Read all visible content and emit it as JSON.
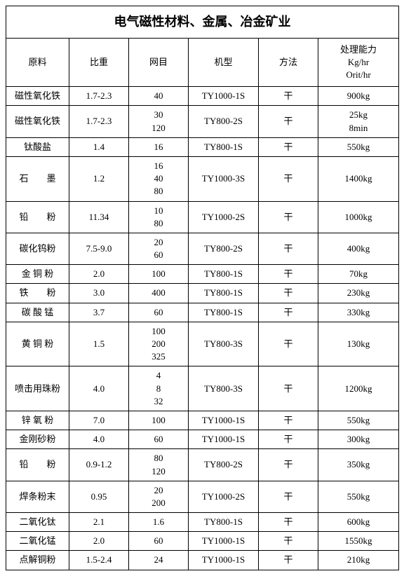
{
  "title": "电气磁性材料、金属、冶金矿业",
  "headers": {
    "col1": "原料",
    "col2": "比重",
    "col3": "网目",
    "col4": "机型",
    "col5": "方法",
    "col6": "处理能力\nKg/hr\nOrit/hr"
  },
  "rows": [
    {
      "c1": "磁性氧化铁",
      "c2": "1.7-2.3",
      "c3": "40",
      "c4": "TY1000-1S",
      "c5": "干",
      "c6": "900kg"
    },
    {
      "c1": "磁性氧化铁",
      "c2": "1.7-2.3",
      "c3": "30\n120",
      "c4": "TY800-2S",
      "c5": "干",
      "c6": "25kg\n8min"
    },
    {
      "c1": "钛酸盐",
      "c2": "1.4",
      "c3": "16",
      "c4": "TY800-1S",
      "c5": "干",
      "c6": "550kg"
    },
    {
      "c1": "石　　墨",
      "c2": "1.2",
      "c3": "16\n40\n80",
      "c4": "TY1000-3S",
      "c5": "干",
      "c6": "1400kg"
    },
    {
      "c1": "铅　　粉",
      "c2": "11.34",
      "c3": "10\n80",
      "c4": "TY1000-2S",
      "c5": "干",
      "c6": "1000kg"
    },
    {
      "c1": "碳化钨粉",
      "c2": "7.5-9.0",
      "c3": "20\n60",
      "c4": "TY800-2S",
      "c5": "干",
      "c6": "400kg"
    },
    {
      "c1": "金 铜 粉",
      "c2": "2.0",
      "c3": "100",
      "c4": "TY800-1S",
      "c5": "干",
      "c6": "70kg"
    },
    {
      "c1": "铁　　粉",
      "c2": "3.0",
      "c3": "400",
      "c4": "TY800-1S",
      "c5": "干",
      "c6": "230kg"
    },
    {
      "c1": "碳 酸 锰",
      "c2": "3.7",
      "c3": "60",
      "c4": "TY800-1S",
      "c5": "干",
      "c6": "330kg"
    },
    {
      "c1": "黄 铜 粉",
      "c2": "1.5",
      "c3": "100\n200\n325",
      "c4": "TY800-3S",
      "c5": "干",
      "c6": "130kg"
    },
    {
      "c1": "喷击用珠粉",
      "c2": "4.0",
      "c3": "4\n8\n32",
      "c4": "TY800-3S",
      "c5": "干",
      "c6": "1200kg"
    },
    {
      "c1": "锌 氧 粉",
      "c2": "7.0",
      "c3": "100",
      "c4": "TY1000-1S",
      "c5": "干",
      "c6": "550kg"
    },
    {
      "c1": "金刚砂粉",
      "c2": "4.0",
      "c3": "60",
      "c4": "TY1000-1S",
      "c5": "干",
      "c6": "300kg"
    },
    {
      "c1": "铅　　粉",
      "c2": "0.9-1.2",
      "c3": "80\n120",
      "c4": "TY800-2S",
      "c5": "干",
      "c6": "350kg"
    },
    {
      "c1": "焊条粉末",
      "c2": "0.95",
      "c3": "20\n200",
      "c4": "TY1000-2S",
      "c5": "干",
      "c6": "550kg"
    },
    {
      "c1": "二氧化钛",
      "c2": "2.1",
      "c3": "1.6",
      "c4": "TY800-1S",
      "c5": "干",
      "c6": "600kg"
    },
    {
      "c1": "二氧化锰",
      "c2": "2.0",
      "c3": "60",
      "c4": "TY1000-1S",
      "c5": "干",
      "c6": "1550kg"
    },
    {
      "c1": "点解铜粉",
      "c2": "1.5-2.4",
      "c3": "24",
      "c4": "TY1000-1S",
      "c5": "干",
      "c6": "210kg"
    }
  ]
}
